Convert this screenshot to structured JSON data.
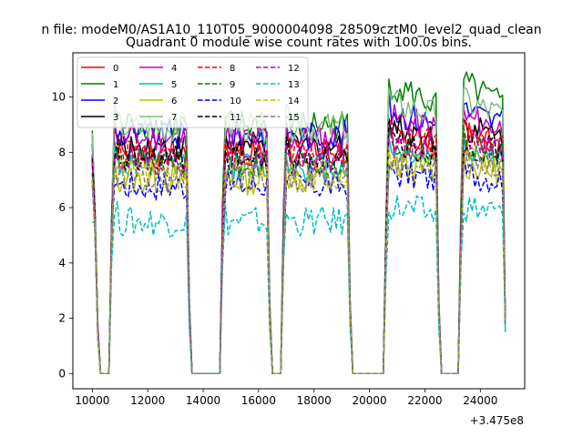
{
  "figure": {
    "suptitle": "n file: modeM0/AS1A10_110T05_9000004098_28509cztM0_level2_quad_clean",
    "title": "Quadrant 0 module wise count rates with 100.0s bins.",
    "offset_text": "+3.475e8"
  },
  "chart_data": {
    "type": "line",
    "title": "Quadrant 0 module wise count rates with 100.0s bins.",
    "xlabel": "",
    "ylabel": "",
    "x_offset": 347500000,
    "xlim": [
      9300,
      25600
    ],
    "ylim": [
      -0.55,
      11.6
    ],
    "grid": false,
    "legend_position": "top-left",
    "xticks": [
      10000,
      12000,
      14000,
      16000,
      18000,
      20000,
      22000,
      24000
    ],
    "xtick_labels": [
      "10000",
      "12000",
      "14000",
      "16000",
      "18000",
      "20000",
      "22000",
      "24000"
    ],
    "yticks": [
      0,
      2,
      4,
      6,
      8,
      10
    ],
    "ytick_labels": [
      "0",
      "2",
      "4",
      "6",
      "8",
      "10"
    ],
    "segments": [
      {
        "x_start": 10000,
        "x_end": 10300,
        "kind": "ramp-down"
      },
      {
        "x_start": 10300,
        "x_end": 10600,
        "kind": "gap"
      },
      {
        "x_start": 10600,
        "x_end": 13500,
        "kind": "data"
      },
      {
        "x_start": 13600,
        "x_end": 14600,
        "kind": "gap"
      },
      {
        "x_start": 14600,
        "x_end": 16400,
        "kind": "data"
      },
      {
        "x_start": 16500,
        "x_end": 16800,
        "kind": "gap"
      },
      {
        "x_start": 16800,
        "x_end": 19300,
        "kind": "data"
      },
      {
        "x_start": 19400,
        "x_end": 20500,
        "kind": "gap"
      },
      {
        "x_start": 20500,
        "x_end": 22500,
        "kind": "data"
      },
      {
        "x_start": 22600,
        "x_end": 23200,
        "kind": "gap"
      },
      {
        "x_start": 23200,
        "x_end": 24900,
        "kind": "data"
      }
    ],
    "series": [
      {
        "name": "0",
        "color": "#ff0000",
        "dash": "solid",
        "level": 8.0,
        "boost": 0.6
      },
      {
        "name": "1",
        "color": "#008000",
        "dash": "solid",
        "level": 9.0,
        "boost": 1.6
      },
      {
        "name": "2",
        "color": "#0000ff",
        "dash": "solid",
        "level": 8.6,
        "boost": 1.0
      },
      {
        "name": "3",
        "color": "#000000",
        "dash": "solid",
        "level": 8.2,
        "boost": 0.8
      },
      {
        "name": "4",
        "color": "#bf00bf",
        "dash": "solid",
        "level": 8.5,
        "boost": 0.8
      },
      {
        "name": "5",
        "color": "#00bfbf",
        "dash": "solid",
        "level": 7.5,
        "boost": 0.7
      },
      {
        "name": "6",
        "color": "#bfbf00",
        "dash": "solid",
        "level": 7.0,
        "boost": 0.6
      },
      {
        "name": "7",
        "color": "#7fbf7f",
        "dash": "solid",
        "level": 8.9,
        "boost": 1.0
      },
      {
        "name": "8",
        "color": "#ff0000",
        "dash": "dashed",
        "level": 7.9,
        "boost": 0.8
      },
      {
        "name": "9",
        "color": "#008000",
        "dash": "dashed",
        "level": 7.6,
        "boost": 0.7
      },
      {
        "name": "10",
        "color": "#0000ff",
        "dash": "dashed",
        "level": 6.8,
        "boost": 0.5
      },
      {
        "name": "11",
        "color": "#000000",
        "dash": "dashed",
        "level": 7.7,
        "boost": 0.7
      },
      {
        "name": "12",
        "color": "#bf00bf",
        "dash": "dashed",
        "level": 7.7,
        "boost": 0.7
      },
      {
        "name": "13",
        "color": "#00bfbf",
        "dash": "dashed",
        "level": 5.5,
        "boost": 0.6
      },
      {
        "name": "14",
        "color": "#bfbf00",
        "dash": "dashed",
        "level": 7.2,
        "boost": 0.6
      },
      {
        "name": "15",
        "color": "#808080",
        "dash": "dashed",
        "level": 7.1,
        "boost": 0.6
      }
    ]
  }
}
